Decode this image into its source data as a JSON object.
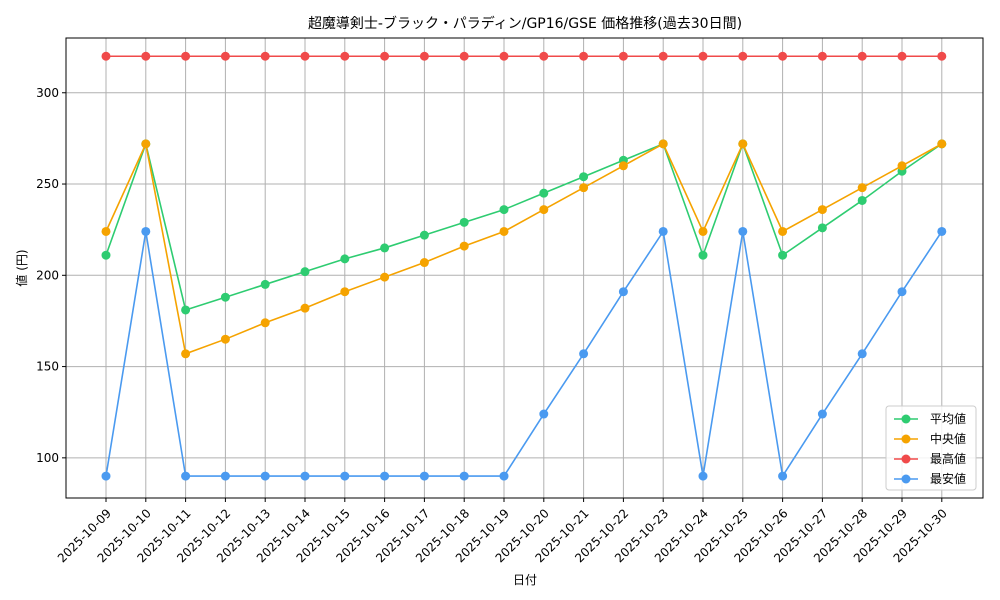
{
  "chart_data": {
    "type": "line",
    "title": "超魔導剣士-ブラック・パラディン/GP16/GSE 価格推移(過去30日間)",
    "xlabel": "日付",
    "ylabel": "値 (円)",
    "ylim": [
      78,
      330
    ],
    "yticks": [
      100,
      150,
      200,
      250,
      300
    ],
    "grid": true,
    "legend_position": "lower-right",
    "categories": [
      "2025-10-09",
      "2025-10-10",
      "2025-10-11",
      "2025-10-12",
      "2025-10-13",
      "2025-10-14",
      "2025-10-15",
      "2025-10-16",
      "2025-10-17",
      "2025-10-18",
      "2025-10-19",
      "2025-10-20",
      "2025-10-21",
      "2025-10-22",
      "2025-10-23",
      "2025-10-24",
      "2025-10-25",
      "2025-10-26",
      "2025-10-27",
      "2025-10-28",
      "2025-10-29",
      "2025-10-30"
    ],
    "series": [
      {
        "name": "平均値",
        "color": "#2ecc71",
        "values": [
          211,
          272,
          181,
          188,
          195,
          202,
          209,
          215,
          222,
          229,
          236,
          245,
          254,
          263,
          272,
          211,
          272,
          211,
          226,
          241,
          257,
          272
        ]
      },
      {
        "name": "中央値",
        "color": "#f5a300",
        "values": [
          224,
          272,
          157,
          165,
          174,
          182,
          191,
          199,
          207,
          216,
          224,
          236,
          248,
          260,
          272,
          224,
          272,
          224,
          236,
          248,
          260,
          272
        ]
      },
      {
        "name": "最高値",
        "color": "#f04a4a",
        "values": [
          320,
          320,
          320,
          320,
          320,
          320,
          320,
          320,
          320,
          320,
          320,
          320,
          320,
          320,
          320,
          320,
          320,
          320,
          320,
          320,
          320,
          320
        ]
      },
      {
        "name": "最安値",
        "color": "#4a9af0",
        "values": [
          90,
          224,
          90,
          90,
          90,
          90,
          90,
          90,
          90,
          90,
          90,
          124,
          157,
          191,
          224,
          90,
          224,
          90,
          124,
          157,
          191,
          224
        ]
      }
    ]
  }
}
